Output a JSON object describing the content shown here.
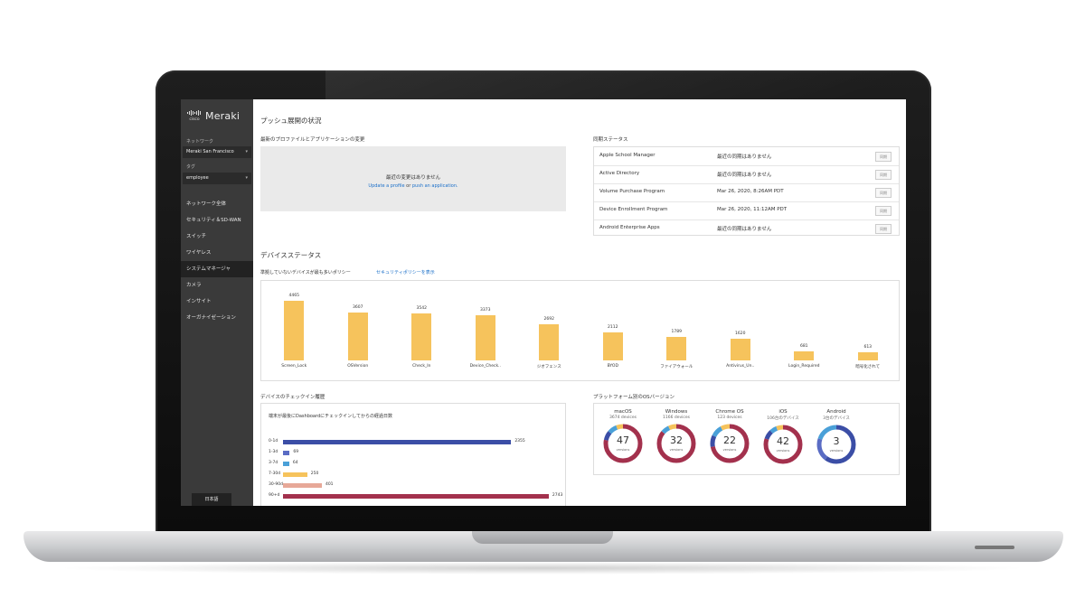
{
  "sidebar": {
    "logo_cisco": "cisco",
    "logo_text": "Meraki",
    "network_label": "ネットワーク",
    "network_value": "Meraki San Francisco",
    "tag_label": "タグ",
    "tag_value": "employee",
    "items": [
      {
        "label": "ネットワーク全体"
      },
      {
        "label": "セキュリティ＆SD-WAN"
      },
      {
        "label": "スイッチ"
      },
      {
        "label": "ワイヤレス"
      },
      {
        "label": "システムマネージャ"
      },
      {
        "label": "カメラ"
      },
      {
        "label": "インサイト"
      },
      {
        "label": "オーガナイゼーション"
      }
    ],
    "active_index": 4,
    "language_button": "日本語"
  },
  "push": {
    "title": "プッシュ展開の状況",
    "changes_title": "最新のプロファイルとアプリケーションの変更",
    "empty_message": "最近の変更はありません",
    "link_profile": "Update a profile",
    "link_or": " or ",
    "link_app": "push an application."
  },
  "sync": {
    "title": "同期ステータス",
    "rows": [
      {
        "name": "Apple School Manager",
        "status": "最近の同期はありません",
        "button": "同期"
      },
      {
        "name": "Active Directory",
        "status": "最近の同期はありません",
        "button": "同期"
      },
      {
        "name": "Volume Purchase Program",
        "status": "Mar 26, 2020, 8:26AM PDT",
        "button": "同期"
      },
      {
        "name": "Device Enrollment Program",
        "status": "Mar 26, 2020, 11:12AM PDT",
        "button": "同期"
      },
      {
        "name": "Android Enterprise Apps",
        "status": "最近の同期はありません",
        "button": "同期"
      }
    ]
  },
  "device_status": {
    "title": "デバイスステータス",
    "policies_title": "準拠していないデバイスが最も多いポリシー",
    "policies_link": "セキュリティポリシーを表示"
  },
  "chart_data": [
    {
      "type": "bar",
      "categories": [
        "Screen_Lock",
        "OSVersion",
        "Check_In",
        "Device_Check..",
        "ジオフェンス",
        "BYOD",
        "ファイアウォール",
        "Antivirus_Un..",
        "Login_Required",
        "暗号化されて"
      ],
      "values": [
        4465,
        3607,
        3542,
        3373,
        2692,
        2112,
        1789,
        1620,
        681,
        613
      ],
      "ylim": [
        0,
        4600
      ],
      "color": "#f6c35c"
    },
    {
      "type": "bar",
      "orientation": "horizontal",
      "title": "デバイスのチェックイン履歴",
      "subtitle": "端末が最後にDashboardにチェックインしてからの経過日数",
      "categories": [
        "0-1d",
        "1-3d",
        "3-7d",
        "7-30d",
        "30-90d",
        "90+d"
      ],
      "values": [
        2355,
        69,
        64,
        250,
        401,
        2743
      ],
      "colors": [
        "#3b4ea6",
        "#5a6cc4",
        "#4aa0d8",
        "#f6c35c",
        "#e7a898",
        "#a3314d"
      ],
      "xlim": [
        0,
        2800
      ]
    },
    {
      "type": "pie",
      "title": "プラットフォーム別のOSバージョン",
      "platforms": [
        {
          "name": "macOS",
          "count": "3674 devices",
          "versions": 47,
          "unit": "versions",
          "colors": [
            "#a3314d",
            "#a3314d",
            "#3b4ea6",
            "#4aa0d8",
            "#f6c35c"
          ],
          "fractions": [
            0.78,
            0.0,
            0.08,
            0.08,
            0.06
          ]
        },
        {
          "name": "Windows",
          "count": "1166 devices",
          "versions": 32,
          "unit": "versions",
          "colors": [
            "#a3314d",
            "#4aa0d8",
            "#f6c35c"
          ],
          "fractions": [
            0.86,
            0.07,
            0.07
          ]
        },
        {
          "name": "Chrome OS",
          "count": "123 devices",
          "versions": 22,
          "unit": "versions",
          "colors": [
            "#a3314d",
            "#3b4ea6",
            "#4aa0d8",
            "#f6c35c"
          ],
          "fractions": [
            0.72,
            0.1,
            0.1,
            0.08
          ]
        },
        {
          "name": "iOS",
          "count": "106台のデバイス",
          "versions": 42,
          "unit": "versions",
          "colors": [
            "#a3314d",
            "#3b4ea6",
            "#4aa0d8",
            "#f6c35c"
          ],
          "fractions": [
            0.8,
            0.08,
            0.06,
            0.06
          ]
        },
        {
          "name": "Android",
          "count": "3台のデバイス",
          "versions": 3,
          "unit": "versions",
          "colors": [
            "#3b4ea6",
            "#5a6cc4",
            "#4aa0d8"
          ],
          "fractions": [
            0.6,
            0.2,
            0.2
          ]
        }
      ]
    }
  ]
}
